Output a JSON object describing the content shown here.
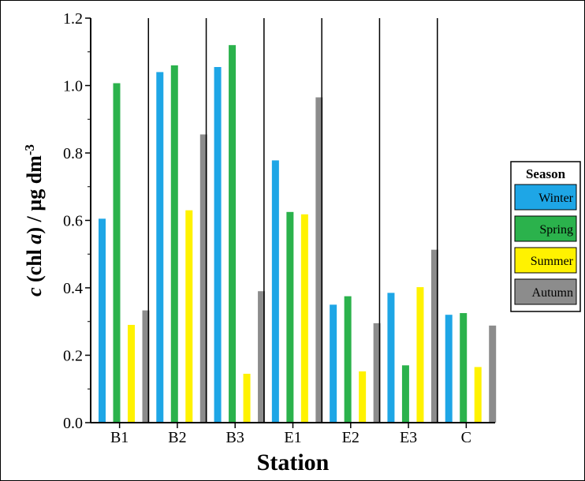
{
  "chart_data": {
    "type": "bar",
    "categories": [
      "B1",
      "B2",
      "B3",
      "E1",
      "E2",
      "E3",
      "C"
    ],
    "series": [
      {
        "name": "Winter",
        "color": "#1ea6e6",
        "values": [
          0.605,
          1.04,
          1.055,
          0.778,
          0.35,
          0.385,
          0.32
        ]
      },
      {
        "name": "Spring",
        "color": "#2bb24c",
        "values": [
          1.007,
          1.06,
          1.12,
          0.625,
          0.375,
          0.17,
          0.325
        ]
      },
      {
        "name": "Summer",
        "color": "#fff200",
        "values": [
          0.29,
          0.63,
          0.145,
          0.618,
          0.152,
          0.402,
          0.165
        ]
      },
      {
        "name": "Autumn",
        "color": "#8c8c8c",
        "values": [
          0.333,
          0.855,
          0.39,
          0.965,
          0.295,
          0.513,
          0.288
        ]
      }
    ],
    "xlabel": "Station",
    "ylabel": {
      "c": "c",
      "mid": " (chl ",
      "a": "a",
      "rest": ") / µg dm",
      "sup": "-3"
    },
    "ylim": [
      0,
      1.2
    ],
    "yticks": [
      "0.0",
      "0.2",
      "0.4",
      "0.6",
      "0.8",
      "1.0",
      "1.2"
    ],
    "grid": false,
    "legend": {
      "title": "Season",
      "placement": "right"
    }
  }
}
